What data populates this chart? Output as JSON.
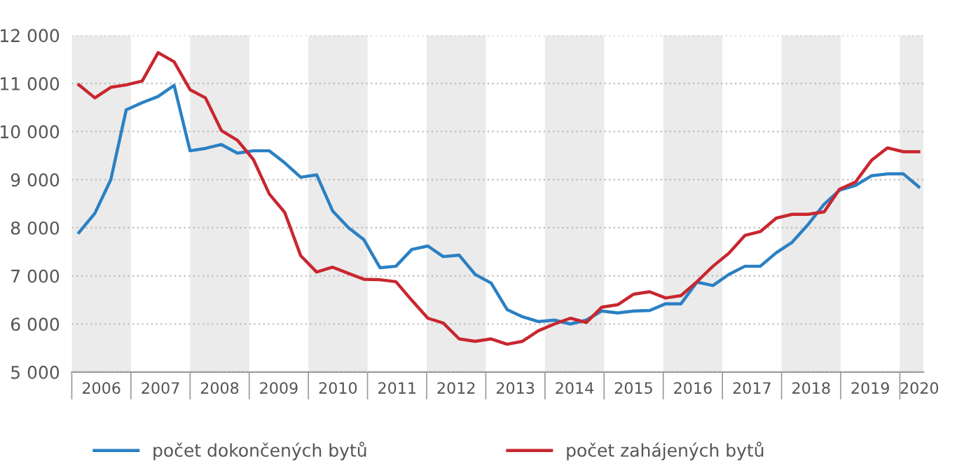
{
  "chart_data": {
    "type": "line",
    "x": [
      2006.12,
      2006.39,
      2006.66,
      2006.92,
      2007.19,
      2007.46,
      2007.73,
      2008.0,
      2008.26,
      2008.53,
      2008.8,
      2009.07,
      2009.34,
      2009.6,
      2009.87,
      2010.14,
      2010.41,
      2010.68,
      2010.94,
      2011.21,
      2011.48,
      2011.75,
      2012.02,
      2012.28,
      2012.55,
      2012.82,
      2013.09,
      2013.36,
      2013.62,
      2013.89,
      2014.16,
      2014.43,
      2014.7,
      2014.96,
      2015.23,
      2015.5,
      2015.77,
      2016.04,
      2016.3,
      2016.57,
      2016.84,
      2017.11,
      2017.38,
      2017.64,
      2017.91,
      2018.18,
      2018.45,
      2018.72,
      2018.98,
      2019.25,
      2019.52,
      2019.79,
      2020.06,
      2020.32
    ],
    "series": [
      {
        "name": "počet dokončených bytů",
        "color": "#2b80c3",
        "values": [
          7900,
          8300,
          9000,
          10450,
          10600,
          10730,
          10960,
          9600,
          9650,
          9730,
          9550,
          9600,
          9600,
          9350,
          9050,
          9100,
          8350,
          8000,
          7750,
          7170,
          7200,
          7550,
          7620,
          7400,
          7430,
          7030,
          6850,
          6300,
          6150,
          6050,
          6080,
          6000,
          6080,
          6270,
          6230,
          6270,
          6280,
          6420,
          6420,
          6870,
          6800,
          7030,
          7200,
          7200,
          7480,
          7700,
          8070,
          8490,
          8780,
          8880,
          9080,
          9120,
          9120,
          8850
        ]
      },
      {
        "name": "počet zahájených bytů",
        "color": "#c9262f",
        "values": [
          10970,
          10700,
          10920,
          10970,
          11050,
          11640,
          11450,
          10870,
          10700,
          10020,
          9820,
          9420,
          8700,
          8320,
          7420,
          7080,
          7180,
          7050,
          6930,
          6920,
          6880,
          6490,
          6120,
          6020,
          5690,
          5640,
          5690,
          5580,
          5640,
          5860,
          6000,
          6120,
          6030,
          6350,
          6400,
          6620,
          6670,
          6540,
          6590,
          6880,
          7200,
          7470,
          7840,
          7920,
          8200,
          8280,
          8280,
          8330,
          8800,
          8950,
          9400,
          9660,
          9580,
          9580
        ]
      }
    ],
    "xlim": [
      2006,
      2020.4
    ],
    "xticks": [
      {
        "value": 2006.5,
        "label": "2006"
      },
      {
        "value": 2007.5,
        "label": "2007"
      },
      {
        "value": 2008.5,
        "label": "2008"
      },
      {
        "value": 2009.5,
        "label": "2009"
      },
      {
        "value": 2010.5,
        "label": "2010"
      },
      {
        "value": 2011.5,
        "label": "2011"
      },
      {
        "value": 2012.5,
        "label": "2012"
      },
      {
        "value": 2013.5,
        "label": "2013"
      },
      {
        "value": 2014.5,
        "label": "2014"
      },
      {
        "value": 2015.5,
        "label": "2015"
      },
      {
        "value": 2016.5,
        "label": "2016"
      },
      {
        "value": 2017.5,
        "label": "2017"
      },
      {
        "value": 2018.5,
        "label": "2018"
      },
      {
        "value": 2019.5,
        "label": "2019"
      },
      {
        "value": 2020.33,
        "label": "2020"
      }
    ],
    "ylim": [
      5000,
      12000
    ],
    "yticks": [
      {
        "value": 5000,
        "label": "5 000"
      },
      {
        "value": 6000,
        "label": "6 000"
      },
      {
        "value": 7000,
        "label": "7 000"
      },
      {
        "value": 8000,
        "label": "8 000"
      },
      {
        "value": 9000,
        "label": "9 000"
      },
      {
        "value": 10000,
        "label": "10 000"
      },
      {
        "value": 11000,
        "label": "11 000"
      },
      {
        "value": 12000,
        "label": "12 000"
      }
    ],
    "bands": [
      {
        "axis": "x",
        "from": 2006,
        "to": 2007,
        "color": "#ebebeb"
      },
      {
        "axis": "x",
        "from": 2008,
        "to": 2009,
        "color": "#ebebeb"
      },
      {
        "axis": "x",
        "from": 2010,
        "to": 2011,
        "color": "#ebebeb"
      },
      {
        "axis": "x",
        "from": 2012,
        "to": 2013,
        "color": "#ebebeb"
      },
      {
        "axis": "x",
        "from": 2014,
        "to": 2015,
        "color": "#ebebeb"
      },
      {
        "axis": "x",
        "from": 2016,
        "to": 2017,
        "color": "#ebebeb"
      },
      {
        "axis": "x",
        "from": 2018,
        "to": 2019,
        "color": "#ebebeb"
      },
      {
        "axis": "x",
        "from": 2020,
        "to": 2020.4,
        "color": "#ebebeb"
      }
    ],
    "grid": "y",
    "legend": "bottom",
    "marker": "none",
    "line_style": "solid"
  }
}
